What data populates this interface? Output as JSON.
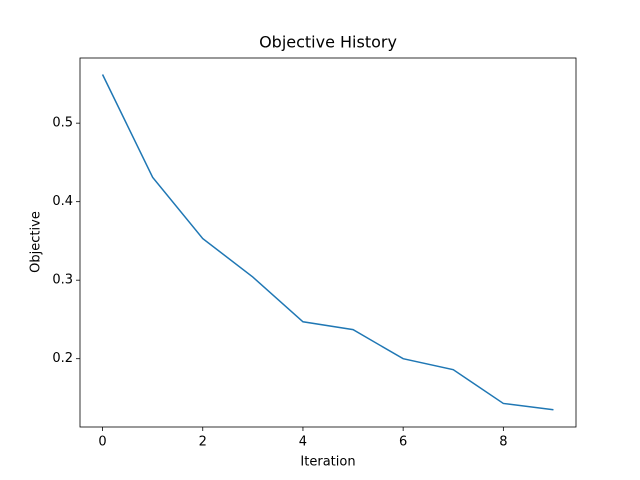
{
  "chart_data": {
    "type": "line",
    "title": "Objective History",
    "xlabel": "Iteration",
    "ylabel": "Objective",
    "x": [
      0,
      1,
      2,
      3,
      4,
      5,
      6,
      7,
      8,
      9
    ],
    "series": [
      {
        "name": "Objective",
        "color": "#1f77b4",
        "values": [
          0.562,
          0.431,
          0.353,
          0.304,
          0.247,
          0.237,
          0.2,
          0.186,
          0.143,
          0.135
        ]
      }
    ],
    "xlim": [
      -0.45,
      9.45
    ],
    "xticks": [
      0,
      2,
      4,
      6,
      8
    ],
    "ylim": [
      0.113,
      0.583
    ],
    "yticks": [
      0.2,
      0.3,
      0.4,
      0.5
    ]
  }
}
